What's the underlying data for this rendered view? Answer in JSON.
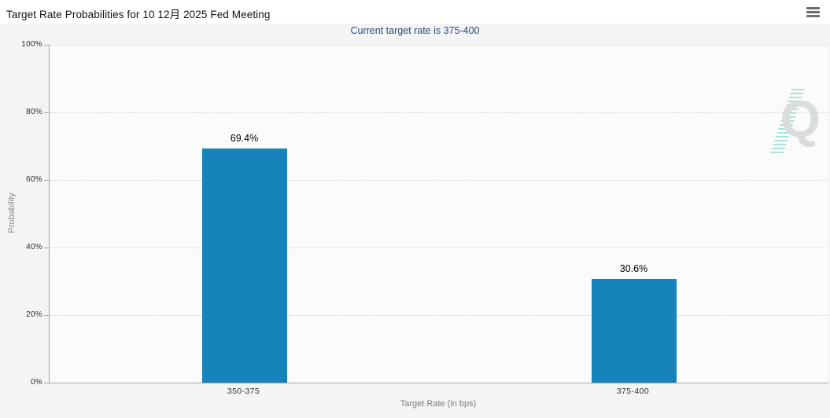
{
  "header": {
    "title": "Target Rate Probabilities for 10 12月 2025 Fed Meeting",
    "menu_icon": "hamburger-icon"
  },
  "subtitle": "Current target rate is 375-400",
  "watermark": {
    "letter": "Q"
  },
  "colors": {
    "bar": "#1683ba",
    "subtitle_text": "#2c4a7c",
    "axis_line": "#a6a6a6",
    "watermark_swoosh": "#9fdcd9"
  },
  "chart_data": {
    "type": "bar",
    "title": "Target Rate Probabilities for 10 12月 2025 Fed Meeting",
    "subtitle": "Current target rate is 375-400",
    "categories": [
      "350-375",
      "375-400"
    ],
    "values": [
      69.4,
      30.6
    ],
    "value_labels": [
      "69.4%",
      "30.6%"
    ],
    "xlabel": "Target Rate (in bps)",
    "ylabel": "Probability",
    "ylim": [
      0,
      100
    ],
    "yticks": [
      "0%",
      "20%",
      "40%",
      "60%",
      "80%",
      "100%"
    ],
    "grid": "horizontal-dotted",
    "legend": "none",
    "bar_color": "#1683ba"
  }
}
